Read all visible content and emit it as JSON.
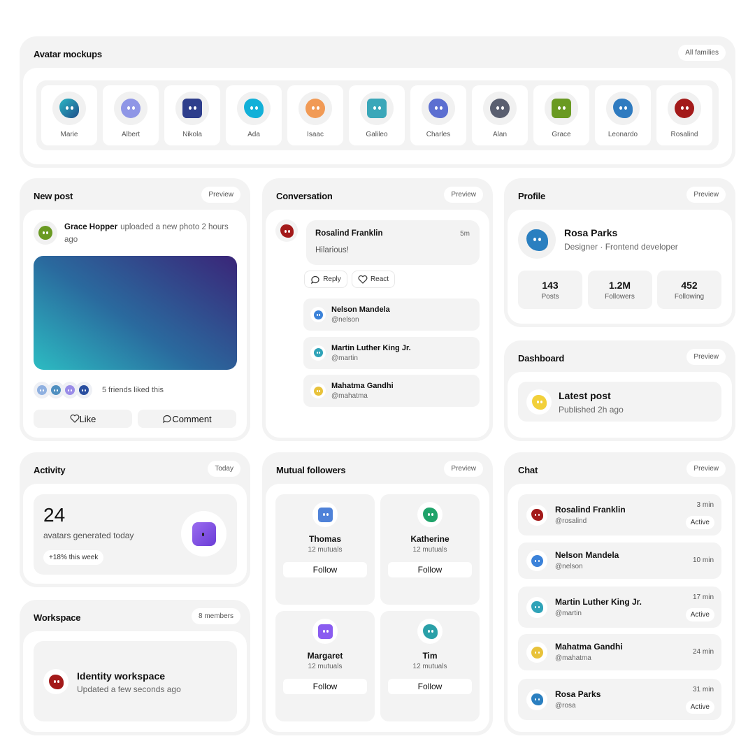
{
  "avatar_mockups": {
    "title": "Avatar mockups",
    "badge": "All families",
    "names": [
      "Marie",
      "Albert",
      "Nikola",
      "Ada",
      "Isaac",
      "Galileo",
      "Charles",
      "Alan",
      "Grace",
      "Leonardo",
      "Rosalind"
    ]
  },
  "new_post": {
    "title": "New post",
    "badge": "Preview",
    "author": "Grace Hopper",
    "text": "uploaded a new photo 2 hours ago",
    "likes_text": "5 friends liked this",
    "actions": [
      "Like",
      "Comment"
    ]
  },
  "conversation": {
    "title": "Conversation",
    "badge": "Preview",
    "message": {
      "author": "Rosalind Franklin",
      "time": "5m",
      "text": "Hilarious!"
    },
    "actions": [
      "Reply",
      "React"
    ],
    "people": [
      {
        "name": "Nelson Mandela",
        "handle": "@nelson"
      },
      {
        "name": "Martin Luther King Jr.",
        "handle": "@martin"
      },
      {
        "name": "Mahatma Gandhi",
        "handle": "@mahatma"
      }
    ]
  },
  "profile": {
    "title": "Profile",
    "badge": "Preview",
    "name": "Rosa Parks",
    "role": "Designer · Frontend developer",
    "stats": [
      {
        "value": 143,
        "label": "Posts"
      },
      {
        "value": "1.2M",
        "label": "Followers"
      },
      {
        "value": 452,
        "label": "Following"
      }
    ]
  },
  "dashboard": {
    "title": "Dashboard",
    "badge": "Preview",
    "item": "Latest post",
    "sub": "Published 2h ago"
  },
  "activity": {
    "title": "Activity",
    "badge": "Today",
    "count": 24,
    "label": "avatars generated today",
    "change": "+18% this week"
  },
  "workspace": {
    "title": "Workspace",
    "badge": "8 members",
    "name": "Identity workspace",
    "sub": "Updated a few seconds ago"
  },
  "mutual_followers": {
    "title": "Mutual followers",
    "badge": "Preview",
    "people": [
      {
        "name": "Thomas",
        "mutuals": "12 mutuals",
        "action": "Follow"
      },
      {
        "name": "Katherine",
        "mutuals": "12 mutuals",
        "action": "Follow"
      },
      {
        "name": "Margaret",
        "mutuals": "12 mutuals",
        "action": "Follow"
      },
      {
        "name": "Tim",
        "mutuals": "12 mutuals",
        "action": "Follow"
      }
    ]
  },
  "chat": {
    "title": "Chat",
    "badge": "Preview",
    "items": [
      {
        "name": "Rosalind Franklin",
        "handle": "@rosalind",
        "time": "3 min",
        "status": "Active"
      },
      {
        "name": "Nelson Mandela",
        "handle": "@nelson",
        "time": "10 min"
      },
      {
        "name": "Martin Luther King Jr.",
        "handle": "@martin",
        "time": "17 min",
        "status": "Active"
      },
      {
        "name": "Mahatma Gandhi",
        "handle": "@mahatma",
        "time": "24 min"
      },
      {
        "name": "Rosa Parks",
        "handle": "@rosa",
        "time": "31 min",
        "status": "Active"
      }
    ]
  }
}
